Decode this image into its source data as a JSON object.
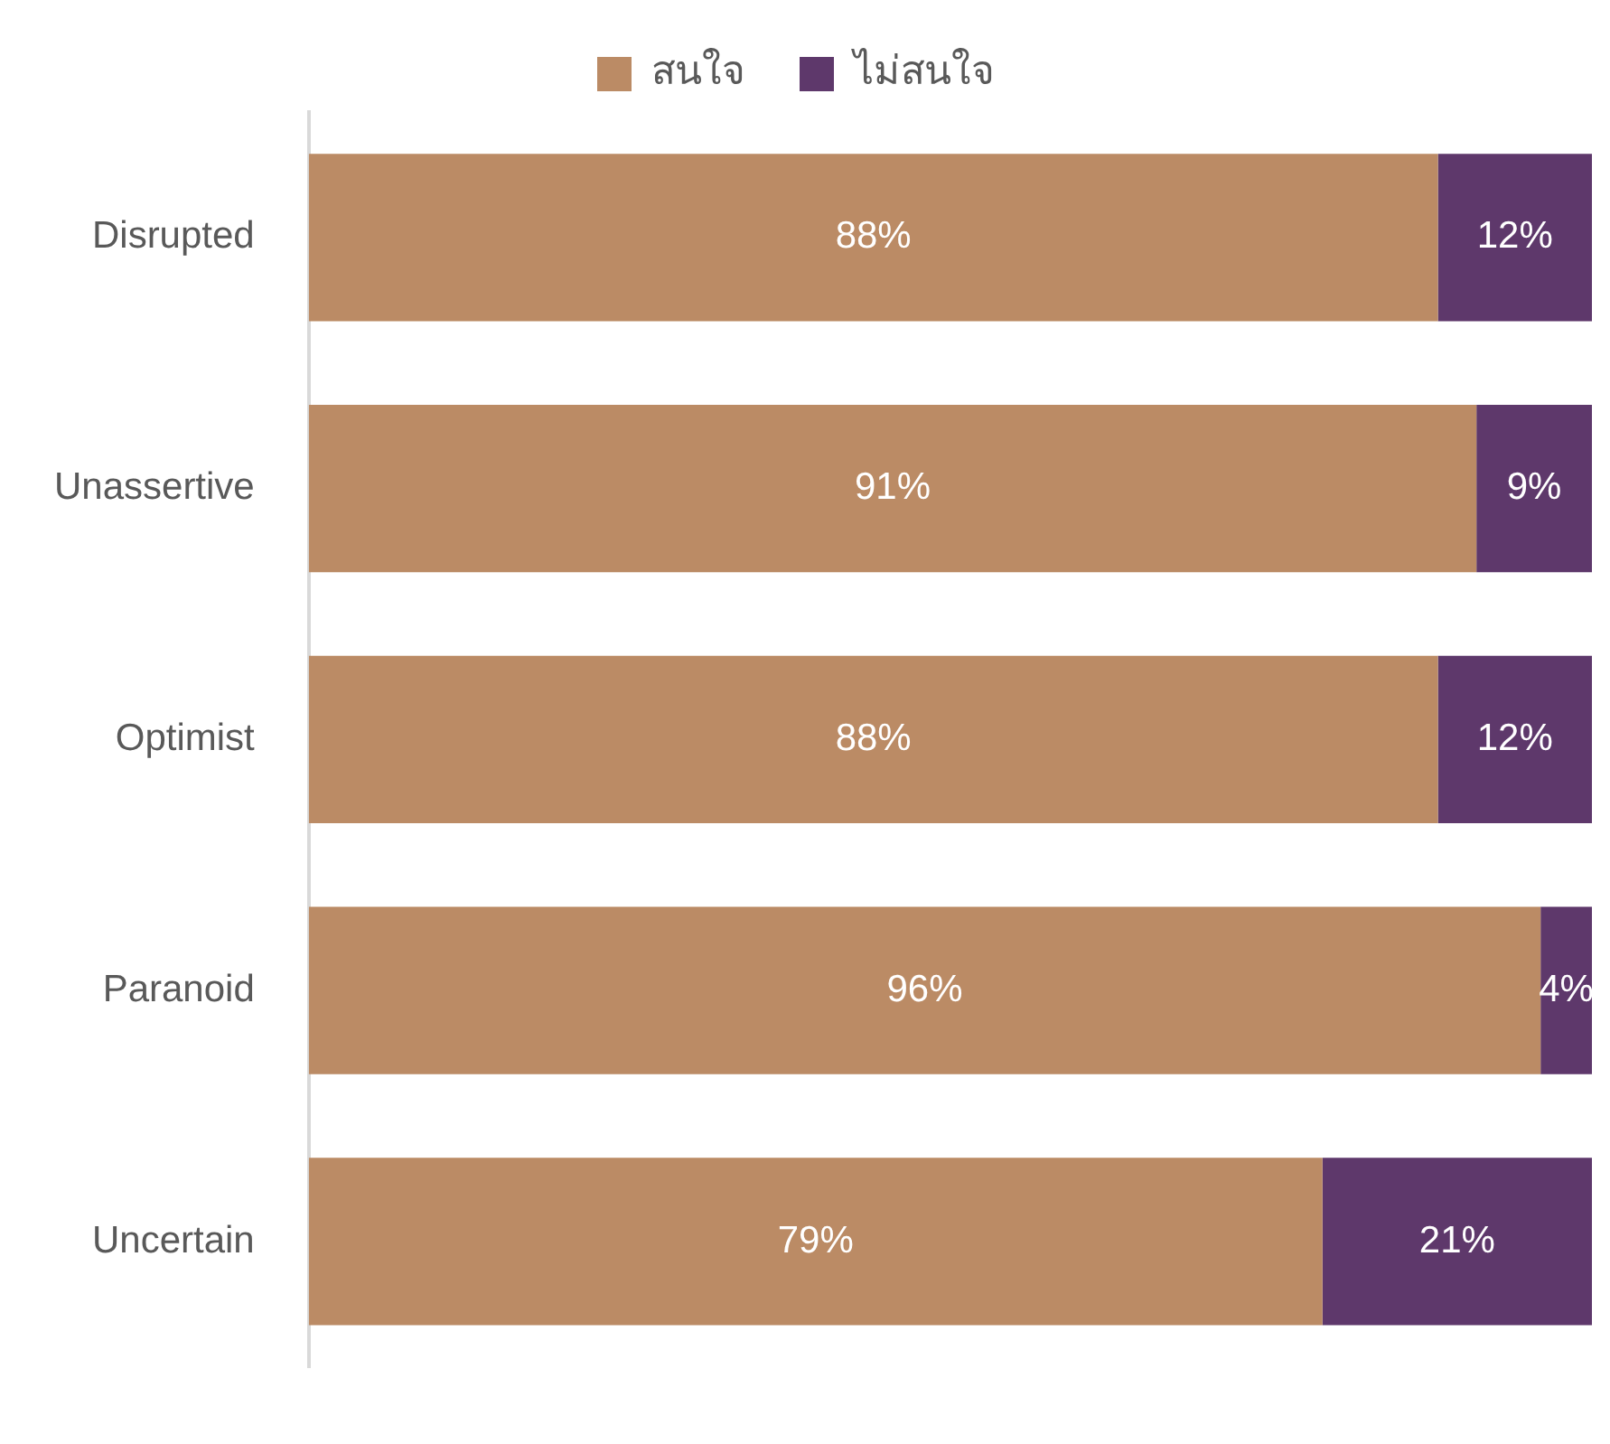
{
  "chart_data": {
    "type": "bar",
    "orientation": "horizontal",
    "stacked": true,
    "categories": [
      "Disrupted",
      "Unassertive",
      "Optimist",
      "Paranoid",
      "Uncertain"
    ],
    "series": [
      {
        "name": "สนใจ",
        "color": "#bb8b65",
        "values": [
          88,
          91,
          88,
          96,
          79
        ],
        "value_labels": [
          "88%",
          "91%",
          "88%",
          "96%",
          "79%"
        ]
      },
      {
        "name": "ไม่สนใจ",
        "color": "#5e386b",
        "values": [
          12,
          9,
          12,
          4,
          21
        ],
        "value_labels": [
          "12%",
          "9%",
          "12%",
          "4%",
          "21%"
        ]
      }
    ],
    "xlim": [
      0,
      100
    ],
    "tick_labels": "y",
    "grid": false,
    "legend": "top"
  }
}
